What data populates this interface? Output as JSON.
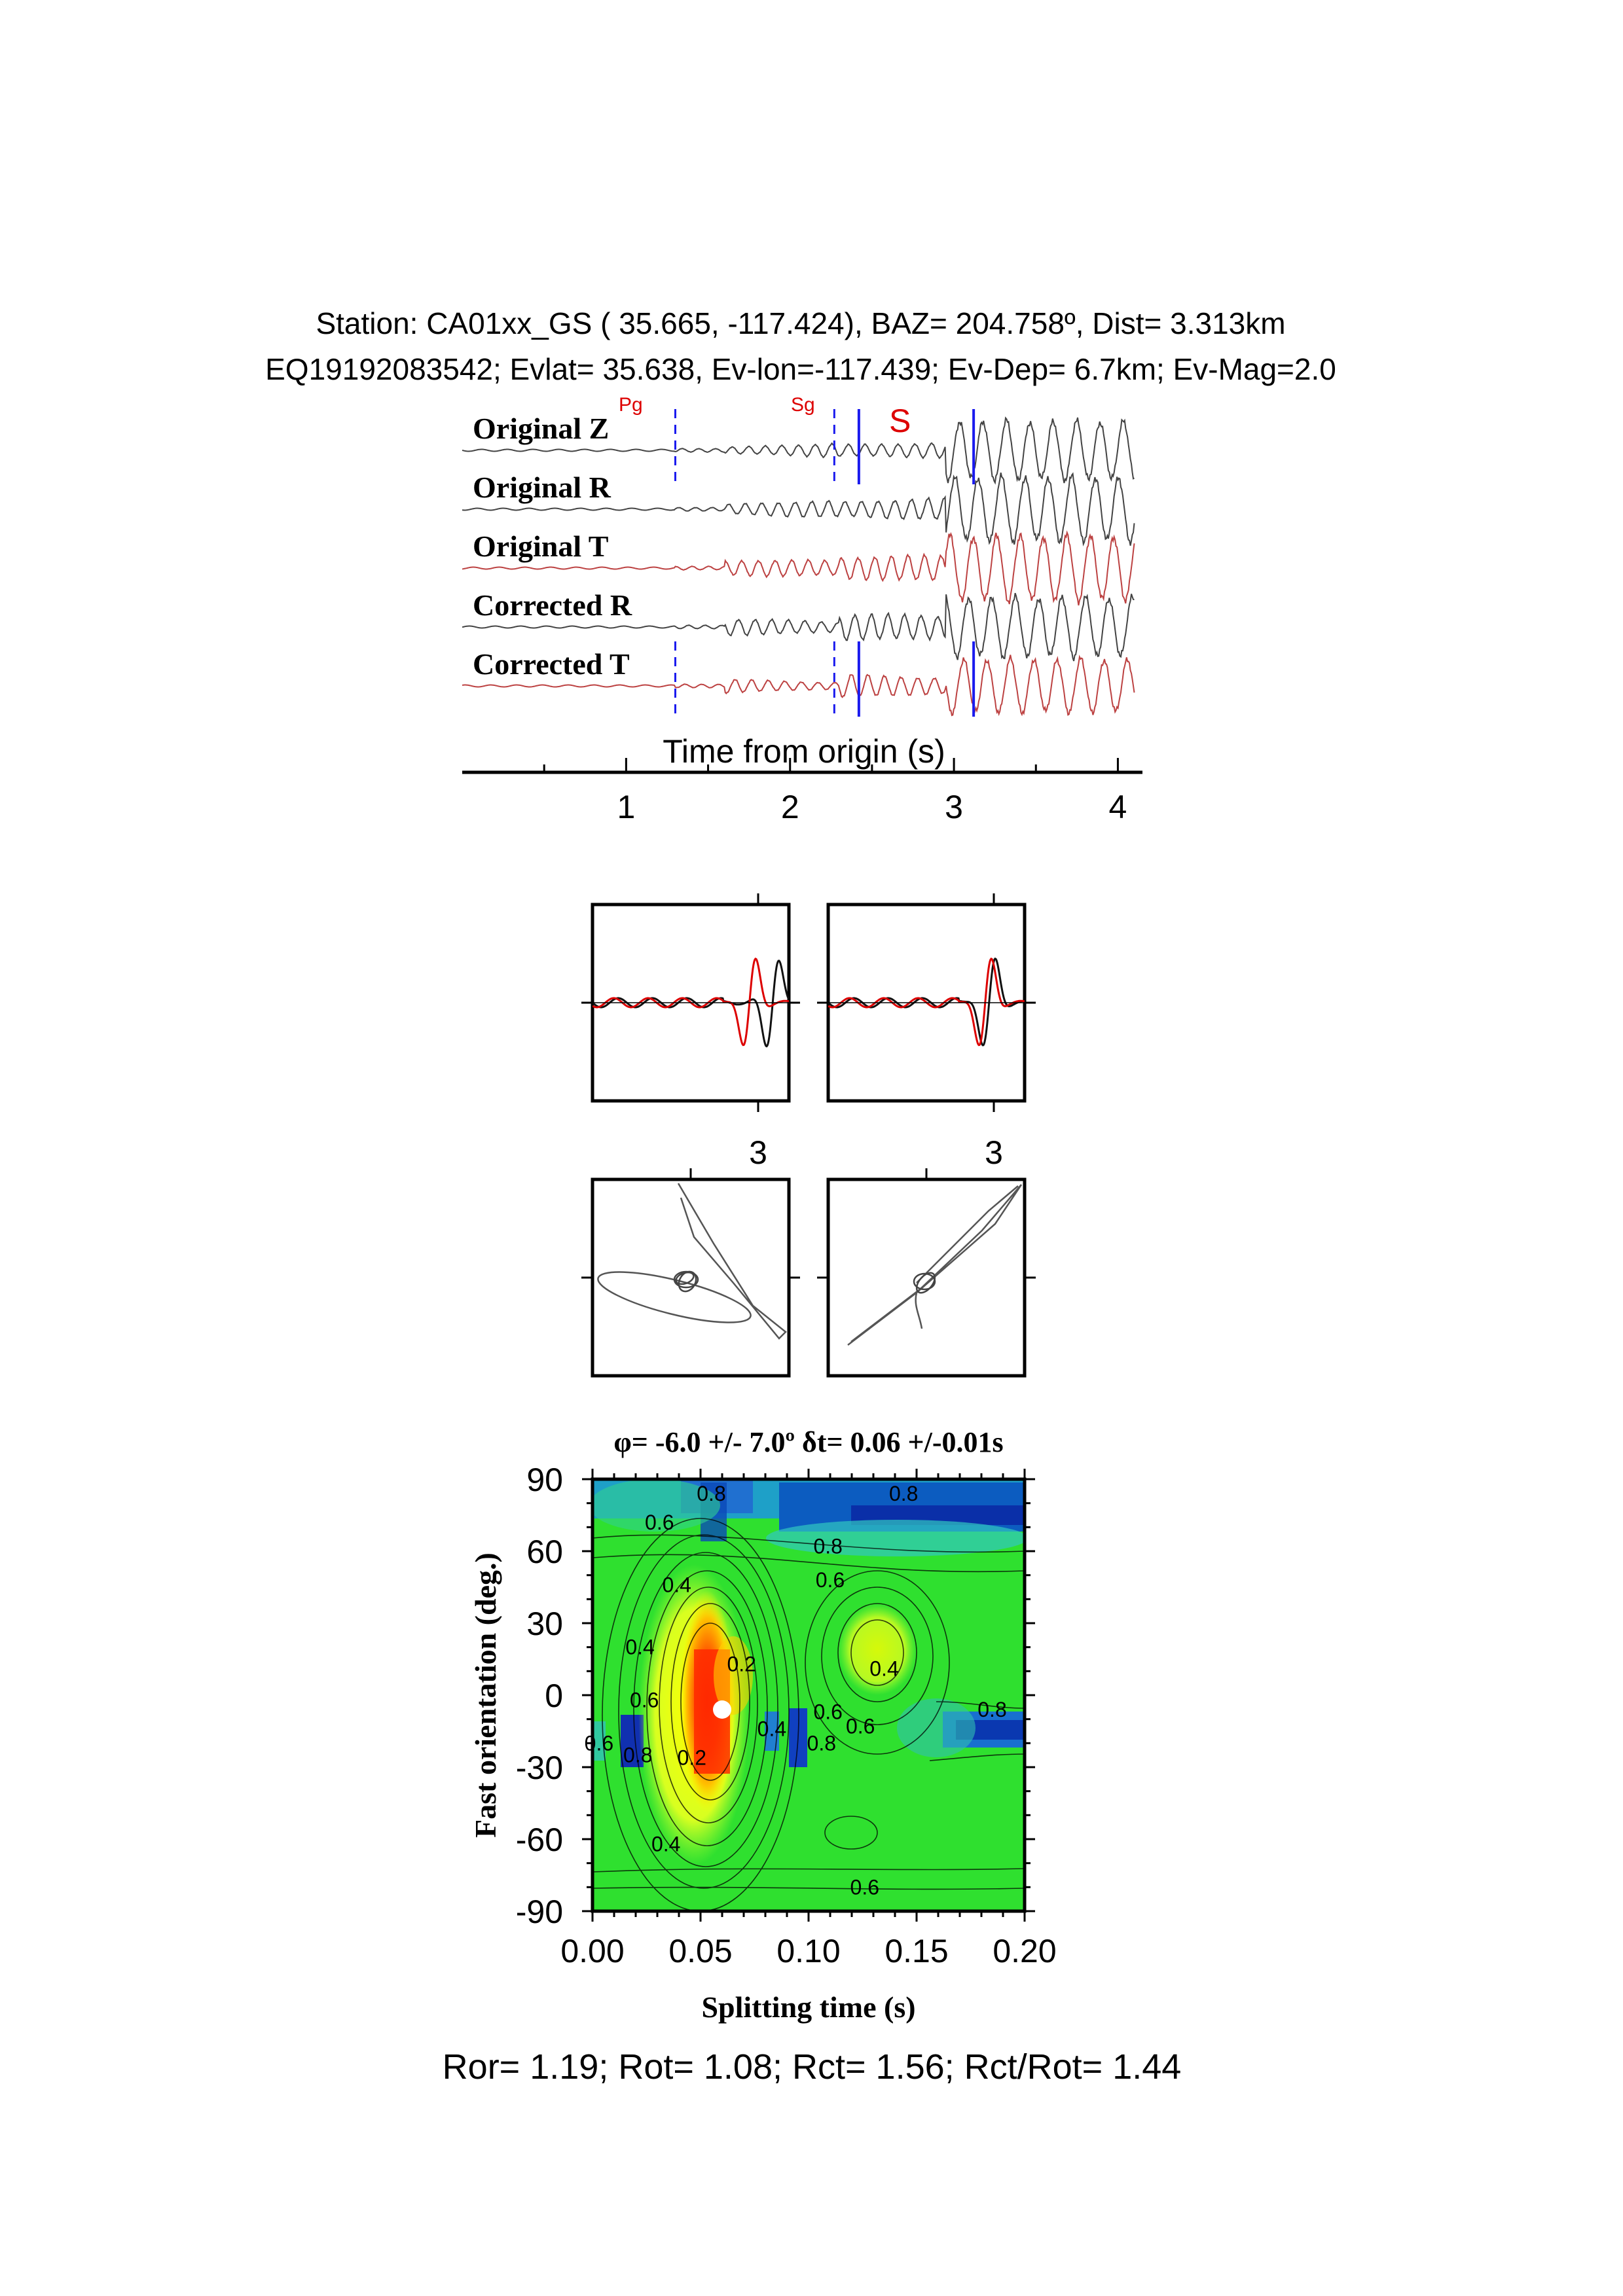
{
  "header": {
    "line1": "Station: CA01xx_GS ( 35.665, -117.424), BAZ=  204.758º, Dist=    3.313km",
    "line2": "EQ19192083542; Evlat=  35.638, Ev-lon=-117.439; Ev-Dep=  6.7km; Ev-Mag=2.0"
  },
  "waveforms": {
    "trace_labels": [
      "Original Z",
      "Original R",
      "Original T",
      "Corrected R",
      "Corrected T"
    ],
    "trace_colors": [
      "#222222",
      "#222222",
      "#b02020",
      "#222222",
      "#b02020"
    ],
    "phase_labels": {
      "pg": "Pg",
      "sg": "Sg",
      "s": "S"
    },
    "phase_times": {
      "pg": 1.3,
      "sg": 2.27,
      "s_window_start": 2.42,
      "s_window_end": 3.12
    },
    "xlabel": "Time from origin (s)",
    "xticks": [
      "1",
      "2",
      "3",
      "4"
    ],
    "xrange": [
      0.0,
      4.15
    ]
  },
  "particle_motion": {
    "top_left_tick": "3",
    "top_right_tick": "3"
  },
  "chart_data": {
    "type": "heatmap",
    "title": "φ= -6.0 +/- 7.0º δt= 0.06 +/-0.01s",
    "xlabel": "Splitting time (s)",
    "ylabel": "Fast orientation (deg.)",
    "xlim": [
      0.0,
      0.2
    ],
    "ylim": [
      -90,
      90
    ],
    "xticks": [
      "0.00",
      "0.05",
      "0.10",
      "0.15",
      "0.20"
    ],
    "yticks": [
      "90",
      "60",
      "30",
      "0",
      "-30",
      "-60",
      "-90"
    ],
    "best_fit": {
      "dt": 0.06,
      "phi": -6.0
    },
    "contour_labels": [
      {
        "text": "0.8",
        "x": 0.055,
        "y": 84
      },
      {
        "text": "0.8",
        "x": 0.144,
        "y": 84
      },
      {
        "text": "0.6",
        "x": 0.031,
        "y": 72
      },
      {
        "text": "0.8",
        "x": 0.109,
        "y": 62
      },
      {
        "text": "0.6",
        "x": 0.11,
        "y": 48
      },
      {
        "text": "0.4",
        "x": 0.039,
        "y": 46
      },
      {
        "text": "0.4",
        "x": 0.022,
        "y": 20
      },
      {
        "text": "0.2",
        "x": 0.069,
        "y": 13
      },
      {
        "text": "0.4",
        "x": 0.135,
        "y": 11
      },
      {
        "text": "0.6",
        "x": 0.024,
        "y": -2
      },
      {
        "text": "0.8",
        "x": 0.185,
        "y": -6
      },
      {
        "text": "0.6",
        "x": 0.109,
        "y": -7
      },
      {
        "text": "0.4",
        "x": 0.083,
        "y": -14
      },
      {
        "text": "0.6",
        "x": 0.124,
        "y": -13
      },
      {
        "text": "0.6",
        "x": 0.003,
        "y": -20
      },
      {
        "text": "0.8",
        "x": 0.106,
        "y": -20
      },
      {
        "text": "0.8",
        "x": 0.021,
        "y": -25
      },
      {
        "text": "0.2",
        "x": 0.046,
        "y": -26
      },
      {
        "text": "0.4",
        "x": 0.034,
        "y": -62
      },
      {
        "text": "0.6",
        "x": 0.126,
        "y": -80
      }
    ]
  },
  "footer": {
    "ratios": "Ror= 1.19; Rot= 1.08; Rct= 1.56; Rct/Rot= 1.44"
  }
}
